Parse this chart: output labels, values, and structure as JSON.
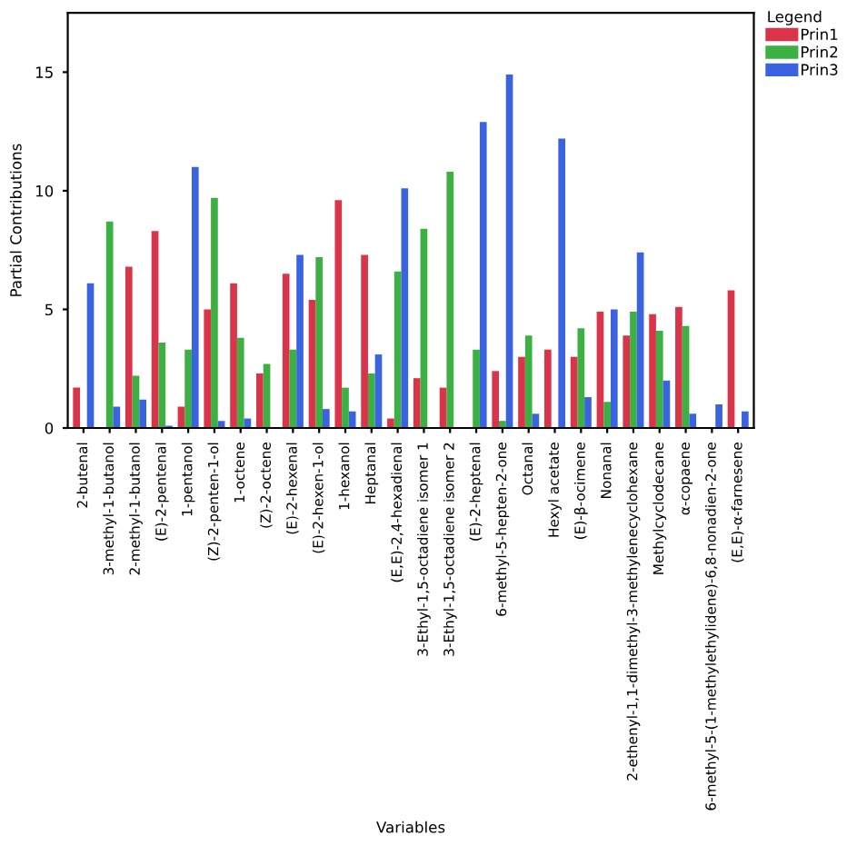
{
  "chart_data": {
    "type": "bar",
    "xlabel": "Variables",
    "ylabel": "Partial Contributions",
    "legend_title": "Legend",
    "legend": "top right",
    "grid": false,
    "categories": [
      "2-butenal",
      "3-methyl-1-butanol",
      "2-methyl-1-butanol",
      "(E)-2-pentenal",
      "1-pentanol",
      "(Z)-2-penten-1-ol",
      "1-octene",
      "(Z)-2-octene",
      "(E)-2-hexenal",
      "(E)-2-hexen-1-ol",
      "1-hexanol",
      "Heptanal",
      "(E,E)-2,4-hexadienal",
      "3-Ethyl-1,5-octadiene isomer 1",
      "3-Ethyl-1,5-octadiene isomer 2",
      "(E)-2-heptenal",
      "6-methyl-5-hepten-2-one",
      "Octanal",
      "Hexyl acetate",
      "(E)-β-ocimene",
      "Nonanal",
      "2-ethenyl-1,1-dimethyl-3-methylenecyclohexane",
      "Methylcyclodecane",
      "α-copaene",
      "6-methyl-5-(1-methylethylidene)-6,8-nonadien-2-one",
      "(E,E)-α-farnesene"
    ],
    "series": [
      {
        "name": "Prin1",
        "color": "#d9344a",
        "values": [
          1.7,
          0,
          6.8,
          8.3,
          0.9,
          5.0,
          6.1,
          2.3,
          6.5,
          5.4,
          9.6,
          7.3,
          0.4,
          2.1,
          1.7,
          0,
          2.4,
          3.0,
          3.3,
          3.0,
          4.9,
          3.9,
          4.8,
          5.1,
          0,
          5.8
        ]
      },
      {
        "name": "Prin2",
        "color": "#3cb043",
        "values": [
          0,
          8.7,
          2.2,
          3.6,
          3.3,
          9.7,
          3.8,
          2.7,
          3.3,
          7.2,
          1.7,
          2.3,
          6.6,
          8.4,
          10.8,
          3.3,
          0.3,
          3.9,
          0,
          4.2,
          1.1,
          4.9,
          4.1,
          4.3,
          0,
          0
        ]
      },
      {
        "name": "Prin3",
        "color": "#3a63e0",
        "values": [
          6.1,
          0.9,
          1.2,
          0.1,
          11.0,
          0.3,
          0.4,
          0,
          7.3,
          0.8,
          0.7,
          3.1,
          10.1,
          0,
          0,
          12.9,
          14.9,
          0.6,
          12.2,
          1.3,
          5.0,
          7.4,
          2.0,
          0.6,
          1.0,
          0.7
        ]
      }
    ],
    "ylim": [
      0,
      17.5
    ],
    "yticks": [
      0,
      5,
      10,
      15
    ]
  }
}
